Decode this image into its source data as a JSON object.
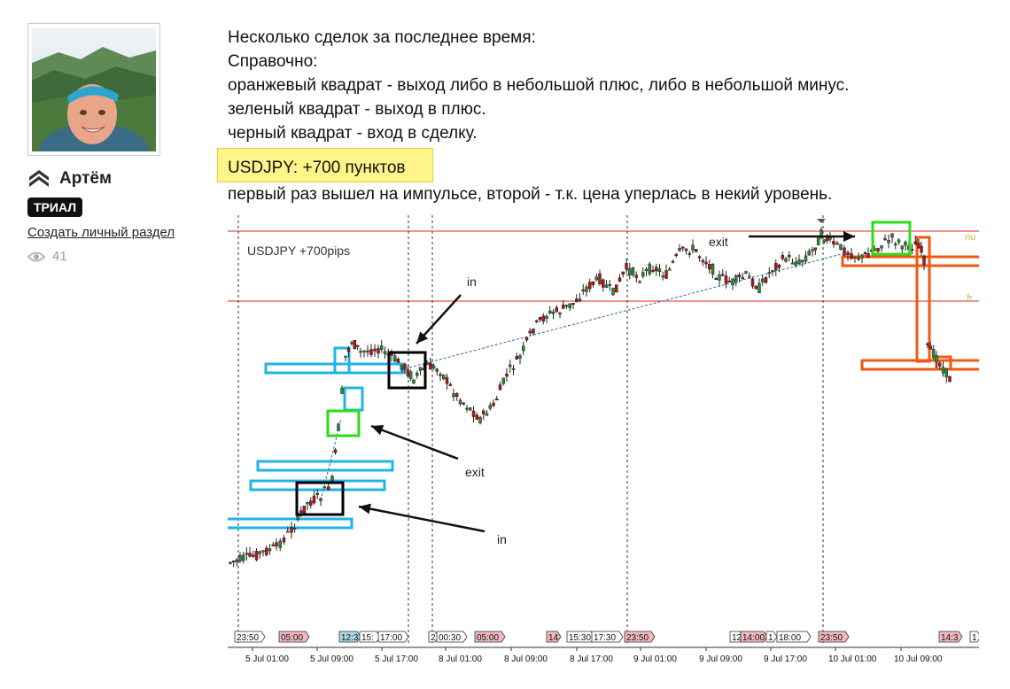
{
  "sidebar": {
    "username": "Артём",
    "badge": "ТРИАЛ",
    "create_link": "Создать личный раздел",
    "views": "41",
    "rank_icon": "chevrons-up-icon",
    "views_icon": "eye-icon"
  },
  "post": {
    "lines": [
      "Несколько сделок за последнее время:",
      "Справочно:",
      "оранжевый квадрат - выход либо в небольшой плюс, либо в небольшой минус.",
      "зеленый квадрат - выход в плюс.",
      "черный квадрат - вход в сделку."
    ],
    "highlight": "USDJPY: +700 пунктов",
    "after_highlight": "первый раз вышел на импульсе, второй - т.к. цена уперлась в некий уровень."
  },
  "chart": {
    "title": "USDJPY  +700pips",
    "annotations": {
      "in_top": "in",
      "exit_mid": "exit",
      "in_bottom": "in",
      "exit_top": "exit"
    },
    "right_labels": [
      "nu",
      "fr"
    ],
    "time_tags": [
      "23:50",
      "05:00",
      "12:3",
      "15:",
      "17:00",
      "2",
      "00:30",
      "05:00",
      "14",
      "15:30",
      "17:30",
      "23:50",
      "12",
      "14:00",
      "1",
      "18:00",
      "23:50",
      "14:3",
      "1"
    ],
    "axis_labels": [
      "5 Jul 01:00",
      "5 Jul 09:00",
      "5 Jul 17:00",
      "8 Jul 01:00",
      "8 Jul 09:00",
      "8 Jul 17:00",
      "9 Jul 01:00",
      "9 Jul 09:00",
      "9 Jul 17:00",
      "10 Jul 01:00",
      "10 Jul 09:00"
    ],
    "colors": {
      "up": "#2f8a2f",
      "down": "#b31616",
      "level": "#e82020",
      "cyan_box": "#1fb4e8",
      "orange_box": "#ee5a12",
      "green_box": "#2bdc19",
      "entry_box": "#000000",
      "tag_red": "#f3b7bf",
      "tag_blue": "#a9dbe8"
    }
  }
}
